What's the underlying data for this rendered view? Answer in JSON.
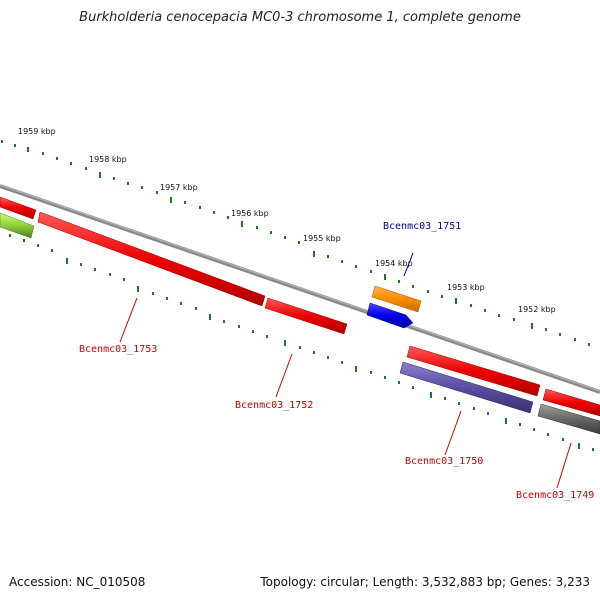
{
  "title": "Burkholderia cenocepacia MC0-3 chromosome 1, complete genome",
  "footer": {
    "accession": "Accession: NC_010508",
    "stats": "Topology: circular; Length: 3,532,883 bp; Genes: 3,233"
  },
  "colors": {
    "backbone": "#8a8a8a",
    "tick": "#1f7a1f",
    "label_red": "#cc0000",
    "label_blue": "#000099"
  },
  "scale_labels": [
    "1959 kbp",
    "1958 kbp",
    "1957 kbp",
    "1956 kbp",
    "1955 kbp",
    "1954 kbp",
    "1953 kbp",
    "1952 kbp"
  ],
  "genes": [
    {
      "name": "Bcenmc03_1753",
      "strand": "+",
      "color": "#ee0000",
      "labelled": true
    },
    {
      "name": "Bcenmc03_1752",
      "strand": "+",
      "color": "#ee0000",
      "labelled": true
    },
    {
      "name": "Bcenmc03_1751",
      "strand": "+",
      "color": "#ff8c00",
      "labelled": true
    },
    {
      "name": "Bcenmc03_1750",
      "strand": "+",
      "color": "#5a4fa0",
      "labelled": true
    },
    {
      "name": "Bcenmc03_1749",
      "strand": "+",
      "color": "#666666",
      "labelled": true
    }
  ],
  "unlabelled_features": [
    {
      "color": "#ee0000"
    },
    {
      "color": "#0000ee"
    },
    {
      "color": "#7fbf3f"
    },
    {
      "color": "#ee0000"
    },
    {
      "color": "#ee0000"
    }
  ]
}
